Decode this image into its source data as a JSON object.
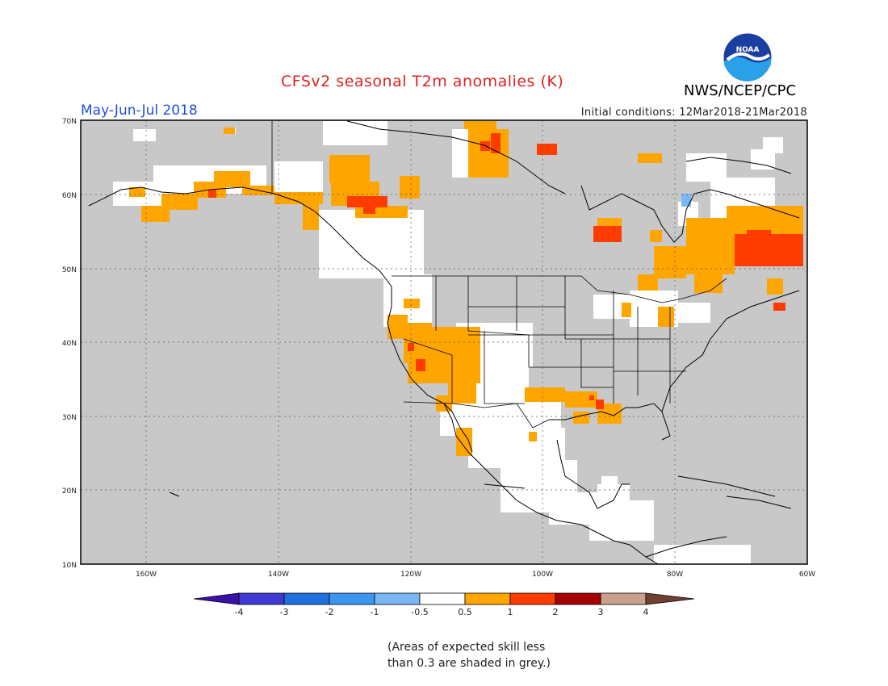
{
  "title": "CFSv2 seasonal T2m anomalies (K)",
  "season": "May-Jun-Jul 2018",
  "initial_conditions": "Initial conditions: 12Mar2018-21Mar2018",
  "agency": "NWS/NCEP/CPC",
  "logo_text": "NOAA",
  "colors": {
    "land_grey": "#c8c8c8",
    "neutral": "#ffffff",
    "warm_0_5_1": "#ffa500",
    "warm_1_2": "#ff3c00",
    "warm_2_3": "#a50000",
    "title": "#e02020",
    "season": "#1f4fe0"
  },
  "lat_labels": [
    "70N",
    "60N",
    "50N",
    "40N",
    "30N",
    "20N",
    "10N"
  ],
  "lon_labels": [
    "160W",
    "140W",
    "120W",
    "100W",
    "80W",
    "60W"
  ],
  "colorbar": {
    "labels": [
      "-4",
      "-3",
      "-2",
      "-1",
      "-0.5",
      "0.5",
      "1",
      "2",
      "3",
      "4"
    ],
    "colors": [
      "#3a10a8",
      "#3e3ad2",
      "#2070e0",
      "#3c96f0",
      "#7ab8f5",
      "#ffffff",
      "#ffa500",
      "#ff3c00",
      "#a50000",
      "#c8a08c",
      "#704030"
    ]
  },
  "note_line1": "(Areas of expected skill less",
  "note_line2": "than 0.3 are shaded in grey.)"
}
